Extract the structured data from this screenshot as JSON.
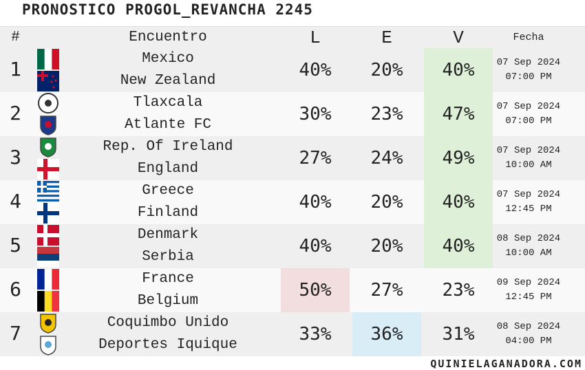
{
  "header": {
    "title": "PRONOSTICO PROGOL_REVANCHA 2245"
  },
  "table": {
    "columns": [
      "#",
      "Encuentro",
      "L",
      "E",
      "V",
      "Fecha"
    ],
    "highlight_colors": {
      "L": "#f2dede",
      "E": "#d9edf7",
      "V": "#dff0d8"
    },
    "rows": [
      {
        "number": 1,
        "home": "Mexico",
        "away": "New Zealand",
        "L": "40%",
        "E": "20%",
        "V": "40%",
        "date": "07 Sep 2024",
        "time": "07:00 PM",
        "highlight": "V"
      },
      {
        "number": 2,
        "home": "Tlaxcala",
        "away": "Atlante FC",
        "L": "30%",
        "E": "23%",
        "V": "47%",
        "date": "07 Sep 2024",
        "time": "07:00 PM",
        "highlight": "V"
      },
      {
        "number": 3,
        "home": "Rep. Of Ireland",
        "away": "England",
        "L": "27%",
        "E": "24%",
        "V": "49%",
        "date": "07 Sep 2024",
        "time": "10:00 AM",
        "highlight": "V"
      },
      {
        "number": 4,
        "home": "Greece",
        "away": "Finland",
        "L": "40%",
        "E": "20%",
        "V": "40%",
        "date": "07 Sep 2024",
        "time": "12:45 PM",
        "highlight": "V"
      },
      {
        "number": 5,
        "home": "Denmark",
        "away": "Serbia",
        "L": "40%",
        "E": "20%",
        "V": "40%",
        "date": "08 Sep 2024",
        "time": "10:00 AM",
        "highlight": "V"
      },
      {
        "number": 6,
        "home": "France",
        "away": "Belgium",
        "L": "50%",
        "E": "27%",
        "V": "23%",
        "date": "09 Sep 2024",
        "time": "12:45 PM",
        "highlight": "L"
      },
      {
        "number": 7,
        "home": "Coquimbo Unido",
        "away": "Deportes Iquique",
        "L": "33%",
        "E": "36%",
        "V": "31%",
        "date": "08 Sep 2024",
        "time": "04:00 PM",
        "highlight": "E"
      }
    ]
  },
  "footer": {
    "site": "quinielaganadora.com"
  }
}
